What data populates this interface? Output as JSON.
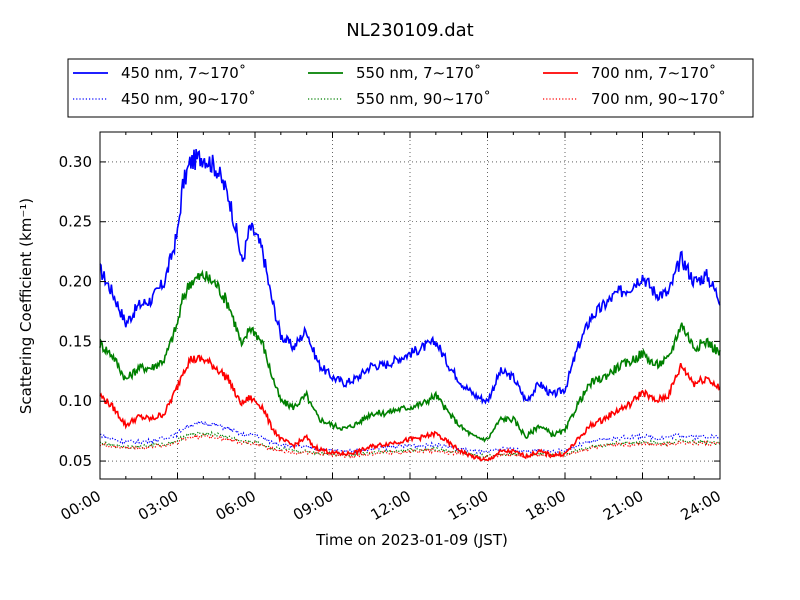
{
  "chart_data": {
    "type": "line",
    "title": "NL230109.dat",
    "xlabel": "Time on 2023-01-09 (JST)",
    "ylabel": "Scattering Coefficient (km⁻¹)",
    "x_unit": "hours",
    "xlim": [
      0,
      24
    ],
    "ylim": [
      0.035,
      0.325
    ],
    "x_ticks": [
      {
        "value": 0,
        "label": "00:00"
      },
      {
        "value": 3,
        "label": "03:00"
      },
      {
        "value": 6,
        "label": "06:00"
      },
      {
        "value": 9,
        "label": "09:00"
      },
      {
        "value": 12,
        "label": "12:00"
      },
      {
        "value": 15,
        "label": "15:00"
      },
      {
        "value": 18,
        "label": "18:00"
      },
      {
        "value": 21,
        "label": "21:00"
      },
      {
        "value": 24,
        "label": "24:00"
      }
    ],
    "y_ticks": [
      {
        "value": 0.05,
        "label": "0.05"
      },
      {
        "value": 0.1,
        "label": "0.10"
      },
      {
        "value": 0.15,
        "label": "0.15"
      },
      {
        "value": 0.2,
        "label": "0.20"
      },
      {
        "value": 0.25,
        "label": "0.25"
      },
      {
        "value": 0.3,
        "label": "0.30"
      }
    ],
    "grid": true,
    "legend_position": "top, above plot",
    "x": [
      0,
      0.5,
      1,
      1.5,
      2,
      2.5,
      3,
      3.2,
      3.5,
      4,
      4.5,
      5,
      5.3,
      5.5,
      5.8,
      6,
      6.3,
      6.6,
      7,
      7.5,
      8,
      8.2,
      8.5,
      9,
      9.5,
      10,
      10.5,
      11,
      11.5,
      12,
      12.5,
      13,
      13.5,
      14,
      14.5,
      15,
      15.5,
      16,
      16.5,
      17,
      17.5,
      18,
      18.5,
      19,
      19.5,
      20,
      20.5,
      21,
      21.5,
      22,
      22.5,
      23,
      23.5,
      24
    ],
    "series": [
      {
        "name": "450 nm, 7∼170˚",
        "color": "#0000ff",
        "style": "solid",
        "values": [
          0.21,
          0.19,
          0.165,
          0.18,
          0.185,
          0.2,
          0.24,
          0.28,
          0.3,
          0.305,
          0.295,
          0.27,
          0.24,
          0.215,
          0.245,
          0.24,
          0.225,
          0.19,
          0.155,
          0.145,
          0.16,
          0.145,
          0.13,
          0.12,
          0.115,
          0.12,
          0.13,
          0.13,
          0.135,
          0.14,
          0.145,
          0.15,
          0.13,
          0.115,
          0.105,
          0.1,
          0.125,
          0.12,
          0.1,
          0.115,
          0.105,
          0.11,
          0.145,
          0.17,
          0.18,
          0.19,
          0.195,
          0.205,
          0.19,
          0.19,
          0.22,
          0.2,
          0.205,
          0.185
        ]
      },
      {
        "name": "550 nm, 7∼170˚",
        "color": "#008000",
        "style": "solid",
        "values": [
          0.148,
          0.138,
          0.118,
          0.128,
          0.128,
          0.135,
          0.165,
          0.185,
          0.2,
          0.205,
          0.198,
          0.18,
          0.16,
          0.145,
          0.162,
          0.158,
          0.148,
          0.125,
          0.1,
          0.095,
          0.105,
          0.095,
          0.085,
          0.08,
          0.077,
          0.082,
          0.09,
          0.09,
          0.093,
          0.095,
          0.098,
          0.105,
          0.09,
          0.078,
          0.07,
          0.068,
          0.085,
          0.085,
          0.07,
          0.08,
          0.072,
          0.075,
          0.098,
          0.115,
          0.12,
          0.128,
          0.133,
          0.14,
          0.13,
          0.135,
          0.165,
          0.145,
          0.15,
          0.14
        ]
      },
      {
        "name": "700 nm, 7∼170˚",
        "color": "#ff0000",
        "style": "solid",
        "values": [
          0.105,
          0.095,
          0.08,
          0.087,
          0.085,
          0.09,
          0.112,
          0.125,
          0.135,
          0.135,
          0.128,
          0.118,
          0.103,
          0.098,
          0.103,
          0.1,
          0.095,
          0.08,
          0.068,
          0.063,
          0.07,
          0.063,
          0.06,
          0.057,
          0.056,
          0.058,
          0.062,
          0.064,
          0.066,
          0.068,
          0.07,
          0.073,
          0.065,
          0.058,
          0.053,
          0.05,
          0.058,
          0.058,
          0.054,
          0.058,
          0.055,
          0.056,
          0.068,
          0.08,
          0.085,
          0.092,
          0.097,
          0.108,
          0.1,
          0.105,
          0.13,
          0.115,
          0.12,
          0.11
        ]
      },
      {
        "name": "450 nm, 90∼170˚",
        "color": "#0000ff",
        "style": "dotted",
        "values": [
          0.072,
          0.068,
          0.066,
          0.066,
          0.067,
          0.069,
          0.073,
          0.077,
          0.08,
          0.082,
          0.08,
          0.077,
          0.074,
          0.072,
          0.072,
          0.072,
          0.069,
          0.066,
          0.064,
          0.062,
          0.062,
          0.061,
          0.06,
          0.059,
          0.058,
          0.059,
          0.06,
          0.061,
          0.062,
          0.063,
          0.063,
          0.064,
          0.062,
          0.06,
          0.058,
          0.057,
          0.06,
          0.06,
          0.058,
          0.059,
          0.058,
          0.059,
          0.063,
          0.066,
          0.068,
          0.069,
          0.07,
          0.071,
          0.069,
          0.07,
          0.072,
          0.07,
          0.071,
          0.07
        ]
      },
      {
        "name": "550 nm, 90∼170˚",
        "color": "#008000",
        "style": "dotted",
        "values": [
          0.065,
          0.063,
          0.062,
          0.062,
          0.063,
          0.064,
          0.067,
          0.07,
          0.072,
          0.073,
          0.072,
          0.07,
          0.068,
          0.066,
          0.066,
          0.066,
          0.064,
          0.061,
          0.06,
          0.058,
          0.058,
          0.057,
          0.057,
          0.056,
          0.055,
          0.056,
          0.057,
          0.058,
          0.058,
          0.059,
          0.059,
          0.06,
          0.058,
          0.057,
          0.055,
          0.054,
          0.056,
          0.056,
          0.055,
          0.056,
          0.055,
          0.056,
          0.059,
          0.062,
          0.063,
          0.065,
          0.065,
          0.066,
          0.065,
          0.065,
          0.067,
          0.066,
          0.066,
          0.065
        ]
      },
      {
        "name": "700 nm, 90∼170˚",
        "color": "#ff0000",
        "style": "dotted",
        "values": [
          0.064,
          0.062,
          0.061,
          0.061,
          0.062,
          0.063,
          0.066,
          0.068,
          0.07,
          0.071,
          0.07,
          0.068,
          0.066,
          0.065,
          0.065,
          0.065,
          0.063,
          0.06,
          0.059,
          0.057,
          0.057,
          0.056,
          0.056,
          0.055,
          0.054,
          0.055,
          0.056,
          0.057,
          0.057,
          0.058,
          0.058,
          0.059,
          0.057,
          0.056,
          0.054,
          0.053,
          0.055,
          0.055,
          0.054,
          0.055,
          0.054,
          0.055,
          0.058,
          0.061,
          0.062,
          0.064,
          0.064,
          0.065,
          0.064,
          0.064,
          0.066,
          0.065,
          0.065,
          0.064
        ]
      }
    ]
  }
}
